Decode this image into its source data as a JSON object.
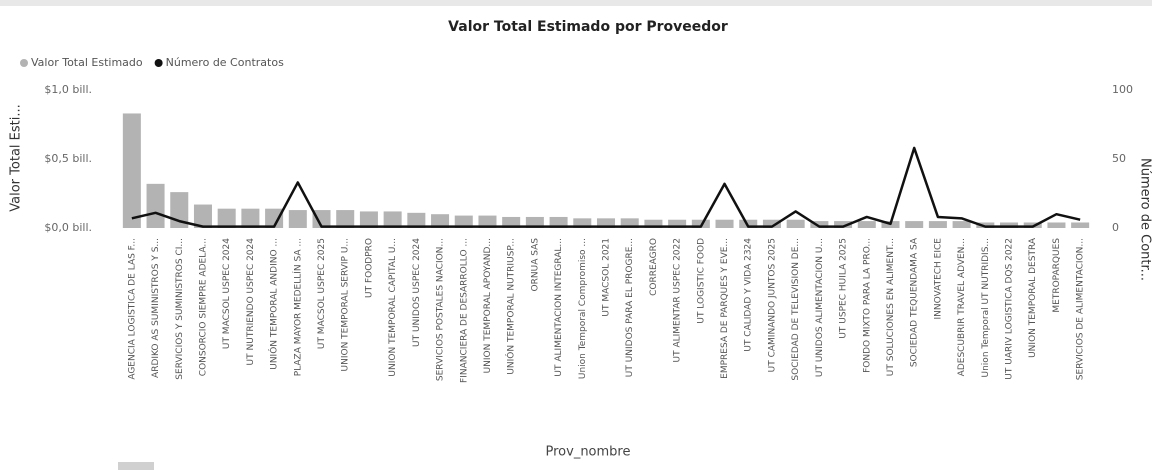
{
  "chart_data": {
    "type": "combo",
    "title": "Valor Total Estimado por Proveedor",
    "x_label": "Prov_nombre",
    "y_label": "Valor Total Esti...",
    "y2_label": "Número de Contr...",
    "categories": [
      "AGENCIA LOGISTICA DE LAS F...",
      "ARDIKO AS SUMINISTROS Y S...",
      "SERVICIOS Y SUMINISTROS CI...",
      "CONSORCIO SIEMPRE ADELA...",
      "UT MACSOL USPEC 2024",
      "UT NUTRIENDO USPEC 2024",
      "UNIÓN TEMPORAL ANDINO ...",
      "PLAZA MAYOR MEDELLÍN SA ...",
      "UT MACSOL USPEC 2025",
      "UNION TEMPORAL SERVIP U...",
      "UT FOODPRO",
      "UNION TEMPORAL CAPITAL U...",
      "UT UNIDOS USPEC 2024",
      "SERVICIOS POSTALES NACION...",
      "FINANCIERA DE DESARROLLO ...",
      "UNION TEMPORAL APOYAND...",
      "UNIÓN TEMPORAL NUTRIUSP...",
      "ORNUA SAS",
      "UT ALIMENTACION INTEGRAL...",
      "Union Temporal Compromiso ...",
      "UT MACSOL 2021",
      "UT UNIDOS PARA EL PROGRE...",
      "CORREAGRO",
      "UT ALIMENTAR USPEC 2022",
      "UT LOGISTIC FOOD",
      "EMPRESA DE PARQUES Y EVE...",
      "UT CALIDAD Y VIDA 2324",
      "UT CAMINANDO JUNTOS 2025",
      "SOCIEDAD DE TELEVISION DE...",
      "UT UNIDOS ALIMENTACION U...",
      "UT USPEC HUILA 2025",
      "FONDO MIXTO PARA LA PRO...",
      "UT SOLUCIONES EN ALIMENT...",
      "SOCIEDAD TEQUENDAMA SA",
      "INNOVATECH EICE",
      "ADESCUBRIR TRAVEL ADVEN...",
      "Union Temporal UT NUTRIDIS...",
      "UT UARIV LOGISTICA DQS 2022",
      "UNION TEMPORAL DESTRA",
      "METROPARQUES",
      "SERVICIOS DE ALIMENTACION..."
    ],
    "series": [
      {
        "name": "Valor Total Estimado",
        "color": "#b3b3b3",
        "values": [
          0.83,
          0.32,
          0.26,
          0.17,
          0.14,
          0.14,
          0.14,
          0.13,
          0.13,
          0.13,
          0.12,
          0.12,
          0.11,
          0.1,
          0.09,
          0.09,
          0.08,
          0.08,
          0.08,
          0.07,
          0.07,
          0.07,
          0.06,
          0.06,
          0.06,
          0.06,
          0.06,
          0.06,
          0.06,
          0.05,
          0.05,
          0.05,
          0.05,
          0.05,
          0.05,
          0.05,
          0.04,
          0.04,
          0.04,
          0.04,
          0.04
        ]
      },
      {
        "name": "Número de Contratos",
        "color": "#111111",
        "axis": "y2",
        "values": [
          7,
          11,
          5,
          1,
          1,
          1,
          1,
          33,
          1,
          1,
          1,
          1,
          1,
          1,
          1,
          1,
          1,
          1,
          1,
          1,
          1,
          1,
          1,
          1,
          1,
          32,
          1,
          1,
          12,
          1,
          1,
          8,
          3,
          58,
          8,
          7,
          1,
          1,
          1,
          10,
          6
        ]
      }
    ],
    "ylim": [
      0,
      1.0
    ],
    "yticks": [
      {
        "value": 0,
        "label": "$0,0 bill."
      },
      {
        "value": 0.5,
        "label": "$0,5 bill."
      },
      {
        "value": 1.0,
        "label": "$1,0 bill."
      }
    ],
    "y2lim": [
      0,
      100
    ],
    "y2ticks": [
      0,
      50,
      100
    ]
  }
}
